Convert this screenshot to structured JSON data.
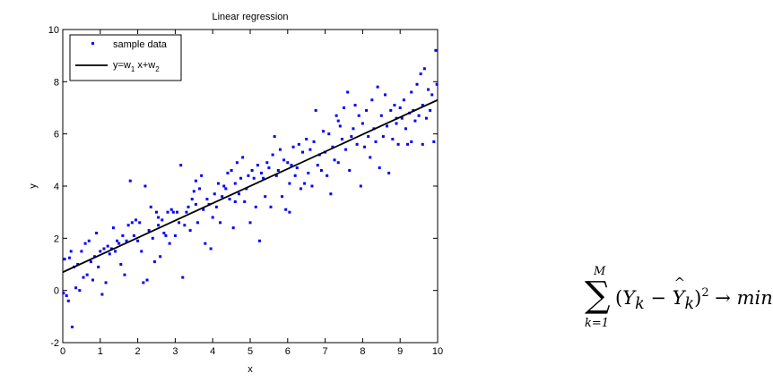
{
  "chart_data": {
    "type": "scatter",
    "title": "Linear regression",
    "xlabel": "x",
    "ylabel": "y",
    "xlim": [
      0,
      10
    ],
    "ylim": [
      -2,
      10
    ],
    "xticks": [
      0,
      1,
      2,
      3,
      4,
      5,
      6,
      7,
      8,
      9,
      10
    ],
    "yticks": [
      -2,
      0,
      2,
      4,
      6,
      8,
      10
    ],
    "grid": false,
    "legend": {
      "position": "top-left",
      "entries": [
        {
          "label": "sample data",
          "marker": "dot",
          "color": "#0000ff"
        },
        {
          "label_parts": [
            "y=w",
            "1",
            " x+w",
            "2"
          ],
          "marker": "line",
          "color": "#000000"
        }
      ]
    },
    "series": [
      {
        "name": "sample data",
        "kind": "scatter",
        "color": "#0000ff",
        "points": [
          [
            0.02,
            -0.1
          ],
          [
            0.05,
            1.2
          ],
          [
            0.1,
            -0.2
          ],
          [
            0.15,
            -0.4
          ],
          [
            0.18,
            1.25
          ],
          [
            0.22,
            1.5
          ],
          [
            0.25,
            -1.4
          ],
          [
            0.3,
            0.9
          ],
          [
            0.35,
            0.1
          ],
          [
            0.4,
            1.0
          ],
          [
            0.45,
            0.0
          ],
          [
            0.5,
            1.5
          ],
          [
            0.55,
            0.5
          ],
          [
            0.6,
            1.8
          ],
          [
            0.65,
            0.6
          ],
          [
            0.7,
            1.9
          ],
          [
            0.75,
            1.1
          ],
          [
            0.8,
            0.4
          ],
          [
            0.85,
            1.3
          ],
          [
            0.9,
            2.2
          ],
          [
            0.95,
            0.9
          ],
          [
            1.0,
            1.5
          ],
          [
            1.05,
            -0.15
          ],
          [
            1.1,
            1.6
          ],
          [
            1.15,
            0.3
          ],
          [
            1.2,
            1.7
          ],
          [
            1.3,
            1.6
          ],
          [
            1.35,
            2.4
          ],
          [
            1.4,
            1.5
          ],
          [
            1.45,
            1.9
          ],
          [
            1.5,
            1.8
          ],
          [
            1.55,
            1.0
          ],
          [
            1.6,
            2.1
          ],
          [
            1.65,
            0.6
          ],
          [
            1.7,
            1.9
          ],
          [
            1.75,
            2.5
          ],
          [
            1.8,
            4.2
          ],
          [
            1.85,
            2.6
          ],
          [
            1.9,
            2.1
          ],
          [
            1.95,
            2.7
          ],
          [
            2.0,
            1.9
          ],
          [
            2.05,
            2.6
          ],
          [
            2.1,
            1.5
          ],
          [
            2.15,
            0.3
          ],
          [
            2.2,
            4.0
          ],
          [
            2.25,
            0.4
          ],
          [
            2.3,
            2.3
          ],
          [
            2.35,
            3.2
          ],
          [
            2.4,
            2.0
          ],
          [
            2.45,
            1.1
          ],
          [
            2.5,
            3.0
          ],
          [
            2.55,
            2.5
          ],
          [
            2.6,
            1.3
          ],
          [
            2.65,
            2.7
          ],
          [
            2.7,
            2.2
          ],
          [
            2.75,
            2.1
          ],
          [
            2.8,
            3.0
          ],
          [
            2.85,
            1.8
          ],
          [
            2.9,
            3.1
          ],
          [
            2.95,
            3.0
          ],
          [
            3.0,
            2.1
          ],
          [
            3.05,
            3.0
          ],
          [
            3.1,
            2.6
          ],
          [
            3.15,
            4.8
          ],
          [
            3.2,
            0.5
          ],
          [
            3.25,
            2.5
          ],
          [
            3.3,
            3.0
          ],
          [
            3.35,
            3.2
          ],
          [
            3.4,
            2.3
          ],
          [
            3.45,
            3.5
          ],
          [
            3.5,
            3.8
          ],
          [
            3.55,
            3.3
          ],
          [
            3.6,
            2.6
          ],
          [
            3.65,
            3.9
          ],
          [
            3.7,
            4.4
          ],
          [
            3.75,
            3.1
          ],
          [
            3.8,
            1.8
          ],
          [
            3.85,
            3.5
          ],
          [
            3.9,
            3.3
          ],
          [
            3.95,
            1.6
          ],
          [
            4.0,
            2.8
          ],
          [
            4.05,
            3.7
          ],
          [
            4.1,
            3.2
          ],
          [
            4.15,
            4.1
          ],
          [
            4.2,
            2.6
          ],
          [
            4.25,
            3.6
          ],
          [
            4.3,
            4.0
          ],
          [
            4.35,
            3.9
          ],
          [
            4.4,
            4.5
          ],
          [
            4.45,
            3.5
          ],
          [
            4.5,
            4.6
          ],
          [
            4.55,
            2.4
          ],
          [
            4.6,
            4.1
          ],
          [
            4.65,
            4.9
          ],
          [
            4.7,
            3.7
          ],
          [
            4.75,
            4.3
          ],
          [
            4.8,
            5.1
          ],
          [
            4.85,
            3.4
          ],
          [
            4.9,
            3.9
          ],
          [
            4.95,
            4.4
          ],
          [
            5.0,
            2.6
          ],
          [
            5.05,
            4.6
          ],
          [
            5.1,
            4.3
          ],
          [
            5.15,
            3.2
          ],
          [
            5.2,
            4.8
          ],
          [
            5.25,
            1.9
          ],
          [
            5.3,
            4.5
          ],
          [
            5.35,
            4.3
          ],
          [
            5.4,
            3.6
          ],
          [
            5.45,
            4.9
          ],
          [
            5.5,
            4.7
          ],
          [
            5.55,
            3.2
          ],
          [
            5.6,
            5.2
          ],
          [
            5.65,
            5.9
          ],
          [
            5.7,
            4.4
          ],
          [
            5.75,
            4.6
          ],
          [
            5.8,
            5.4
          ],
          [
            5.85,
            3.6
          ],
          [
            5.9,
            5.0
          ],
          [
            5.95,
            3.1
          ],
          [
            6.0,
            4.9
          ],
          [
            6.05,
            3.0
          ],
          [
            6.1,
            4.8
          ],
          [
            6.15,
            5.5
          ],
          [
            6.2,
            4.4
          ],
          [
            6.25,
            4.7
          ],
          [
            6.3,
            5.6
          ],
          [
            6.35,
            3.9
          ],
          [
            6.4,
            5.3
          ],
          [
            6.45,
            4.1
          ],
          [
            6.5,
            5.8
          ],
          [
            6.55,
            4.5
          ],
          [
            6.6,
            5.4
          ],
          [
            6.65,
            4.0
          ],
          [
            6.7,
            5.7
          ],
          [
            6.75,
            6.9
          ],
          [
            6.8,
            4.8
          ],
          [
            6.85,
            5.2
          ],
          [
            6.9,
            4.6
          ],
          [
            6.95,
            6.1
          ],
          [
            7.0,
            5.3
          ],
          [
            7.05,
            4.4
          ],
          [
            7.1,
            6.0
          ],
          [
            7.15,
            3.7
          ],
          [
            7.2,
            5.5
          ],
          [
            7.25,
            5.0
          ],
          [
            7.3,
            6.7
          ],
          [
            7.35,
            4.9
          ],
          [
            7.4,
            6.3
          ],
          [
            7.45,
            5.8
          ],
          [
            7.5,
            7.0
          ],
          [
            7.55,
            5.4
          ],
          [
            7.6,
            7.6
          ],
          [
            7.65,
            4.6
          ],
          [
            7.7,
            5.9
          ],
          [
            7.75,
            6.2
          ],
          [
            7.8,
            7.1
          ],
          [
            7.85,
            5.6
          ],
          [
            7.9,
            6.7
          ],
          [
            7.95,
            4.0
          ],
          [
            8.0,
            6.4
          ],
          [
            8.05,
            5.5
          ],
          [
            8.1,
            6.9
          ],
          [
            8.15,
            5.9
          ],
          [
            8.2,
            5.1
          ],
          [
            8.25,
            7.3
          ],
          [
            8.3,
            6.2
          ],
          [
            8.35,
            5.7
          ],
          [
            8.4,
            7.8
          ],
          [
            8.45,
            4.7
          ],
          [
            8.5,
            6.7
          ],
          [
            8.55,
            5.9
          ],
          [
            8.6,
            7.5
          ],
          [
            8.65,
            6.3
          ],
          [
            8.7,
            4.5
          ],
          [
            8.75,
            6.9
          ],
          [
            8.8,
            5.8
          ],
          [
            8.85,
            7.1
          ],
          [
            8.9,
            6.4
          ],
          [
            8.95,
            5.6
          ],
          [
            9.0,
            7.0
          ],
          [
            9.05,
            6.6
          ],
          [
            9.1,
            7.3
          ],
          [
            9.15,
            6.2
          ],
          [
            9.2,
            5.6
          ],
          [
            9.25,
            6.8
          ],
          [
            9.3,
            7.6
          ],
          [
            9.35,
            6.9
          ],
          [
            9.4,
            6.5
          ],
          [
            9.45,
            7.9
          ],
          [
            9.5,
            6.7
          ],
          [
            9.55,
            8.3
          ],
          [
            9.6,
            7.1
          ],
          [
            9.65,
            8.5
          ],
          [
            9.7,
            6.6
          ],
          [
            9.75,
            7.7
          ],
          [
            9.8,
            6.9
          ],
          [
            9.85,
            7.5
          ],
          [
            9.9,
            5.7
          ],
          [
            9.95,
            9.2
          ],
          [
            9.98,
            7.9
          ],
          [
            9.3,
            5.7
          ],
          [
            8.9,
            6.6
          ],
          [
            9.6,
            5.6
          ],
          [
            7.35,
            6.5
          ],
          [
            6.05,
            4.1
          ],
          [
            4.6,
            3.4
          ],
          [
            2.55,
            2.8
          ],
          [
            1.25,
            1.4
          ],
          [
            3.55,
            4.2
          ]
        ]
      },
      {
        "name": "y=w1 x+w2",
        "kind": "line",
        "color": "#000000",
        "points": [
          [
            0,
            0.7
          ],
          [
            10,
            7.3
          ]
        ]
      }
    ]
  },
  "formula": {
    "sum_upper": "M",
    "sum_lower": "k=1",
    "symbol": "∑",
    "y": "Y",
    "sub_k": "k",
    "yhat": "Y",
    "power": "2",
    "arrow": "→",
    "target": "min"
  }
}
